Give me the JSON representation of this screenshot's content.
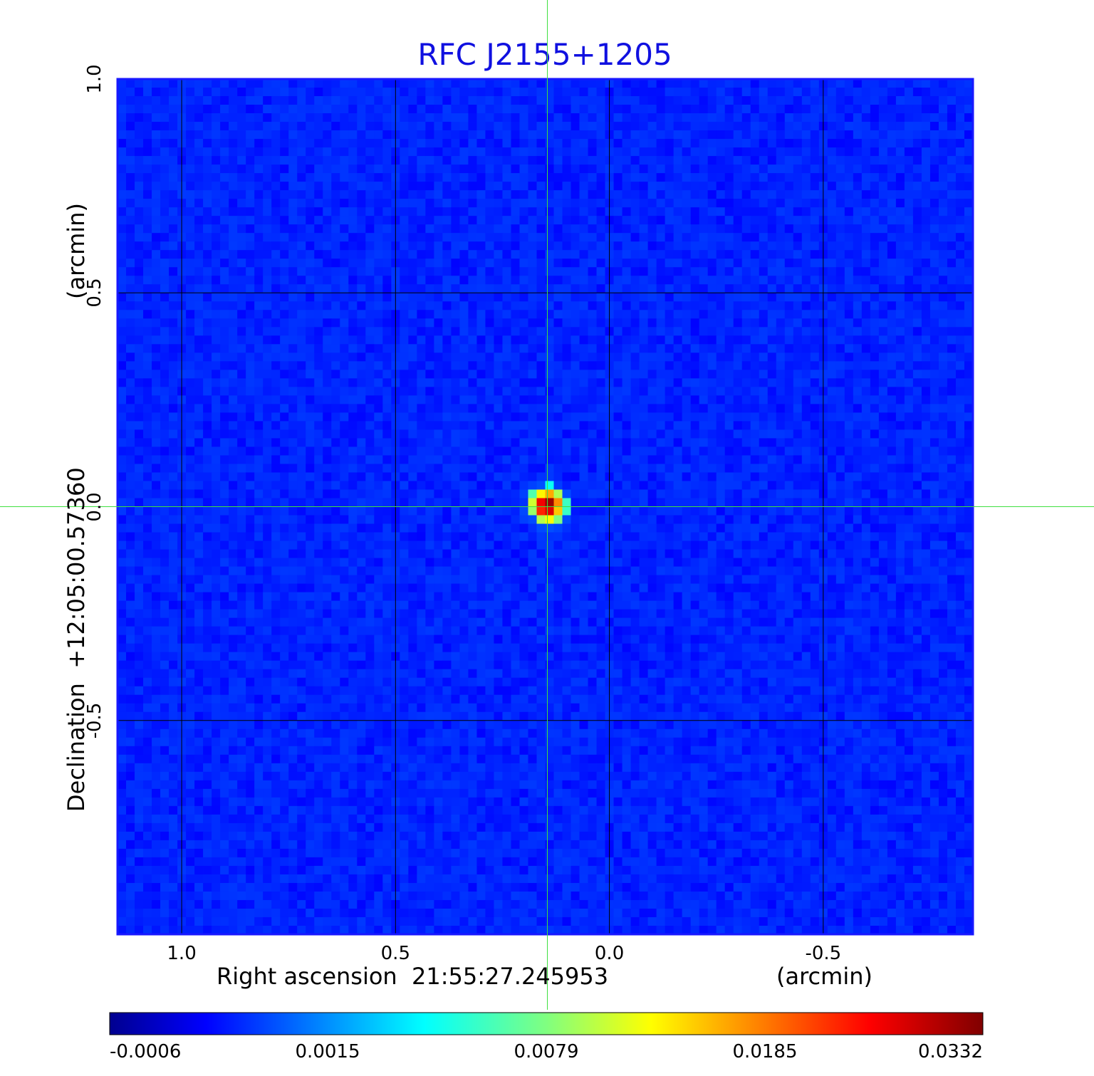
{
  "chart_data": {
    "type": "heatmap",
    "title": "RFC J2155+1205",
    "xlabel": "Right ascension  21:55:27.245953",
    "xunit": "(arcmin)",
    "ylabel": "Declination  +12:05:00.57360",
    "yunit": "(arcmin)",
    "x_ticks": [
      "1.0",
      "0.5",
      "0.0",
      "-0.5"
    ],
    "x_tick_values": [
      1.0,
      0.5,
      0.0,
      -0.5
    ],
    "y_ticks": [
      "1.0",
      "0.5",
      "0.0",
      "-0.5"
    ],
    "y_tick_values": [
      1.0,
      0.5,
      0.0,
      -0.5
    ],
    "xlim": [
      1.15,
      -0.85
    ],
    "ylim": [
      -1.0,
      1.0
    ],
    "grid": true,
    "colormap": "jet",
    "colorbar_ticks": [
      "-0.0006",
      "0.0015",
      "0.0079",
      "0.0185",
      "0.0332"
    ],
    "colorbar_range": [
      -0.0006,
      0.0332
    ],
    "background_level": 0.0003,
    "source": {
      "ra_offset": 0.145,
      "dec_offset": 0.003,
      "peak": 0.0332
    },
    "crosshair": {
      "ra_offset": 0.145,
      "dec_offset": 0.0
    },
    "crosshair_color": "#40e040",
    "title_color": "#1010e0"
  }
}
